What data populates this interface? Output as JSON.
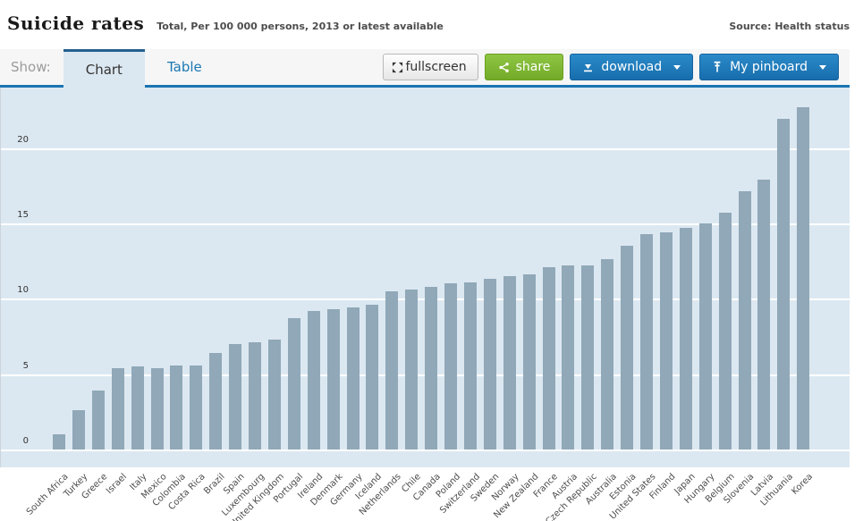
{
  "header": {
    "title": "Suicide rates",
    "subtitle": "Total, Per 100 000 persons, 2013 or latest available",
    "source_label": "Source:",
    "source_link": "Health status"
  },
  "toolbar": {
    "show_label": "Show:",
    "tabs": [
      {
        "label": "Chart",
        "active": true
      },
      {
        "label": "Table",
        "active": false
      }
    ],
    "buttons": {
      "fullscreen": "fullscreen",
      "share": "share",
      "download": "download",
      "pinboard": "My pinboard"
    }
  },
  "colors": {
    "accent_blue": "#1a74b2",
    "button_green": "#73aa27",
    "bar_fill": "#90a8b8",
    "plot_background": "#dce8f1",
    "gridline": "#ffffff"
  },
  "chart_data": {
    "type": "bar",
    "title": "Suicide rates",
    "subtitle": "Total, Per 100 000 persons, 2013 or latest available",
    "ylabel": "Per 100 000 persons",
    "ylim": [
      0,
      24
    ],
    "yticks": [
      0,
      5,
      10,
      15,
      20
    ],
    "grid": "horizontal-white-lines",
    "legend": "none",
    "categories": [
      "South Africa",
      "Turkey",
      "Greece",
      "Israel",
      "Italy",
      "Mexico",
      "Colombia",
      "Costa Rica",
      "Brazil",
      "Spain",
      "Luxembourg",
      "United Kingdom",
      "Portugal",
      "Ireland",
      "Denmark",
      "Germany",
      "Iceland",
      "Netherlands",
      "Chile",
      "Canada",
      "Poland",
      "Switzerland",
      "Sweden",
      "Norway",
      "New Zealand",
      "France",
      "Austria",
      "Czech Republic",
      "Australia",
      "Estonia",
      "United States",
      "Finland",
      "Japan",
      "Hungary",
      "Belgium",
      "Slovenia",
      "Latvia",
      "Lithuania",
      "Korea"
    ],
    "values": [
      1.0,
      2.6,
      3.9,
      5.4,
      5.5,
      5.4,
      5.6,
      5.6,
      6.4,
      7.0,
      7.1,
      7.3,
      8.7,
      9.2,
      9.3,
      9.4,
      9.6,
      10.5,
      10.6,
      10.8,
      11.0,
      11.1,
      11.3,
      11.5,
      11.6,
      12.1,
      12.2,
      12.2,
      12.6,
      13.5,
      14.3,
      14.4,
      14.7,
      15.0,
      15.7,
      17.1,
      17.9,
      21.9,
      22.7
    ]
  }
}
